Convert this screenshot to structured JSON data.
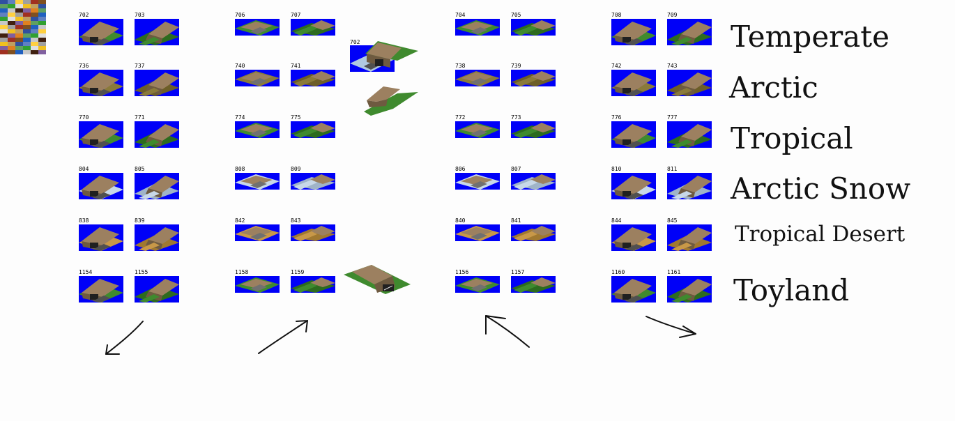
{
  "climates": [
    {
      "label": "Temperate",
      "ground": "#3f8a2e",
      "ground_dark": "#2d6b1f"
    },
    {
      "label": "Arctic",
      "ground": "#8a7a3a",
      "ground_dark": "#6d5e28"
    },
    {
      "label": "Tropical",
      "ground": "#3f8a2e",
      "ground_dark": "#2d6b1f"
    },
    {
      "label": "Arctic Snow",
      "ground": "#c8d8e8",
      "ground_dark": "#a0b4c8"
    },
    {
      "label": "Tropical Desert",
      "ground": "#c89848",
      "ground_dark": "#a07830"
    },
    {
      "label": "Toyland",
      "ground": "#3f8a2e",
      "ground_dark": "#2d6b1f"
    }
  ],
  "groups": [
    {
      "ids": [
        [
          "702",
          "703"
        ],
        [
          "736",
          "737"
        ],
        [
          "770",
          "771"
        ],
        [
          "804",
          "805"
        ],
        [
          "838",
          "839"
        ],
        [
          "1154",
          "1155"
        ]
      ],
      "style": "tall"
    },
    {
      "ids": [
        [
          "706",
          "707"
        ],
        [
          "740",
          "741"
        ],
        [
          "774",
          "775"
        ],
        [
          "808",
          "809"
        ],
        [
          "842",
          "843"
        ],
        [
          "1158",
          "1159"
        ]
      ],
      "style": "flat"
    },
    {
      "ids": [
        [
          "704",
          "705"
        ],
        [
          "738",
          "739"
        ],
        [
          "772",
          "773"
        ],
        [
          "806",
          "807"
        ],
        [
          "840",
          "841"
        ],
        [
          "1156",
          "1157"
        ]
      ],
      "style": "flat"
    },
    {
      "ids": [
        [
          "708",
          "709"
        ],
        [
          "742",
          "743"
        ],
        [
          "776",
          "777"
        ],
        [
          "810",
          "811"
        ],
        [
          "844",
          "845"
        ],
        [
          "1160",
          "1161"
        ]
      ],
      "style": "tall"
    }
  ],
  "floater": {
    "label": "702"
  },
  "colors": {
    "sprite_bg": "#0000f8",
    "bridge_top": "#9c8060",
    "bridge_side": "#6e5a40",
    "road": "#505050"
  }
}
